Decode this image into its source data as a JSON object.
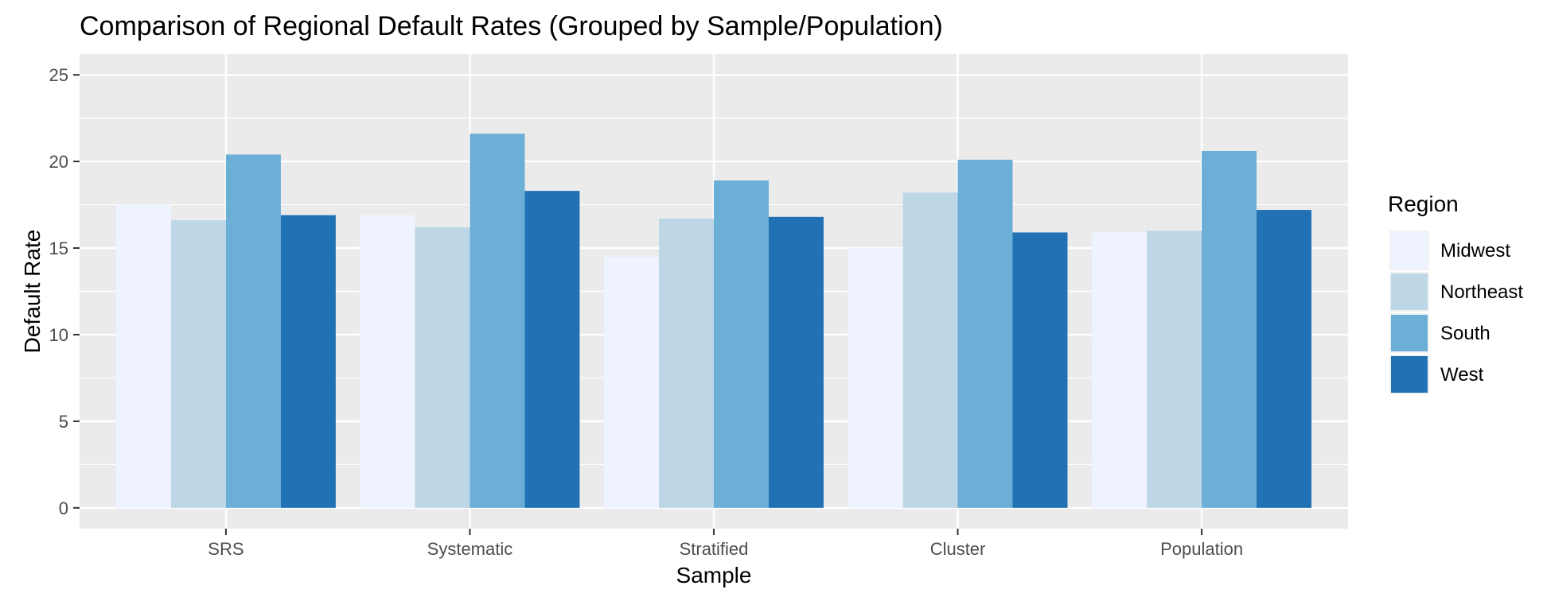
{
  "chart_data": {
    "type": "bar",
    "title": "Comparison of Regional Default Rates (Grouped by Sample/Population)",
    "xlabel": "Sample",
    "ylabel": "Default Rate",
    "categories": [
      "SRS",
      "Systematic",
      "Stratified",
      "Cluster",
      "Population"
    ],
    "series": [
      {
        "name": "Midwest",
        "color": "#eff3ff",
        "values": [
          17.5,
          16.9,
          14.5,
          15.0,
          15.9
        ]
      },
      {
        "name": "Northeast",
        "color": "#bdd7e7",
        "values": [
          16.6,
          16.2,
          16.7,
          18.2,
          16.0
        ]
      },
      {
        "name": "South",
        "color": "#6baed6",
        "values": [
          20.4,
          21.6,
          18.9,
          20.1,
          20.6
        ]
      },
      {
        "name": "West",
        "color": "#2171b5",
        "values": [
          16.9,
          18.3,
          16.8,
          15.9,
          17.2
        ]
      }
    ],
    "ylim": [
      -1.2,
      26.2
    ],
    "yticks": [
      0,
      5,
      10,
      15,
      20,
      25
    ],
    "grid": true,
    "panel_background": "#ebebeb",
    "legend": {
      "title": "Region",
      "position": "right"
    }
  }
}
